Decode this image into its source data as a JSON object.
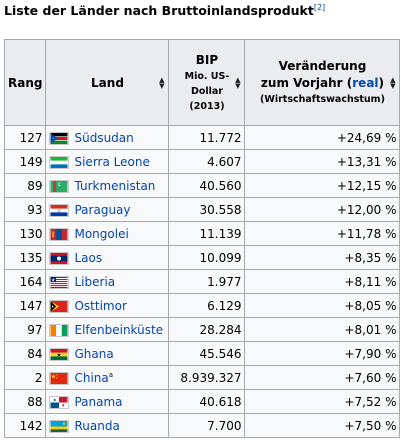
{
  "caption": {
    "text": "Liste der Länder nach Bruttoinlandsprodukt",
    "ref": "[2]"
  },
  "headers": {
    "rang": "Rang",
    "land": "Land",
    "bip_title": "BIP",
    "bip_sub1": "Mio. US-",
    "bip_sub2": "Dollar",
    "bip_sub3": "(2013)",
    "ver_line1": "Veränderung",
    "ver_line2_prefix": "zum Vorjahr (",
    "ver_link": "real",
    "ver_line2_suffix": ")",
    "ver_sub": "(Wirtschaftswachstum)"
  },
  "rows": [
    {
      "rang": "127",
      "land": "Südsudan",
      "flag": "south-sudan-flag-icon",
      "note": "",
      "bip": "11.772",
      "change": "+24,69 %"
    },
    {
      "rang": "149",
      "land": "Sierra Leone",
      "flag": "sierra-leone-flag-icon",
      "note": "",
      "bip": "4.607",
      "change": "+13,31 %"
    },
    {
      "rang": "89",
      "land": "Turkmenistan",
      "flag": "turkmenistan-flag-icon",
      "note": "",
      "bip": "40.560",
      "change": "+12,15 %"
    },
    {
      "rang": "93",
      "land": "Paraguay",
      "flag": "paraguay-flag-icon",
      "note": "",
      "bip": "30.558",
      "change": "+12,00 %"
    },
    {
      "rang": "130",
      "land": "Mongolei",
      "flag": "mongolia-flag-icon",
      "note": "",
      "bip": "11.139",
      "change": "+11,78 %"
    },
    {
      "rang": "135",
      "land": "Laos",
      "flag": "laos-flag-icon",
      "note": "",
      "bip": "10.099",
      "change": "+8,35 %"
    },
    {
      "rang": "164",
      "land": "Liberia",
      "flag": "liberia-flag-icon",
      "note": "",
      "bip": "1.977",
      "change": "+8,11 %"
    },
    {
      "rang": "147",
      "land": "Osttimor",
      "flag": "east-timor-flag-icon",
      "note": "",
      "bip": "6.129",
      "change": "+8,05 %"
    },
    {
      "rang": "97",
      "land": "Elfenbeinküste",
      "flag": "ivory-coast-flag-icon",
      "note": "",
      "bip": "28.284",
      "change": "+8,01 %"
    },
    {
      "rang": "84",
      "land": "Ghana",
      "flag": "ghana-flag-icon",
      "note": "",
      "bip": "45.546",
      "change": "+7,90 %"
    },
    {
      "rang": "2",
      "land": "China",
      "flag": "china-flag-icon",
      "note": "a",
      "bip": "8.939.327",
      "change": "+7,60 %"
    },
    {
      "rang": "88",
      "land": "Panama",
      "flag": "panama-flag-icon",
      "note": "",
      "bip": "40.618",
      "change": "+7,52 %"
    },
    {
      "rang": "142",
      "land": "Ruanda",
      "flag": "rwanda-flag-icon",
      "note": "",
      "bip": "7.700",
      "change": "+7,50 %"
    }
  ]
}
